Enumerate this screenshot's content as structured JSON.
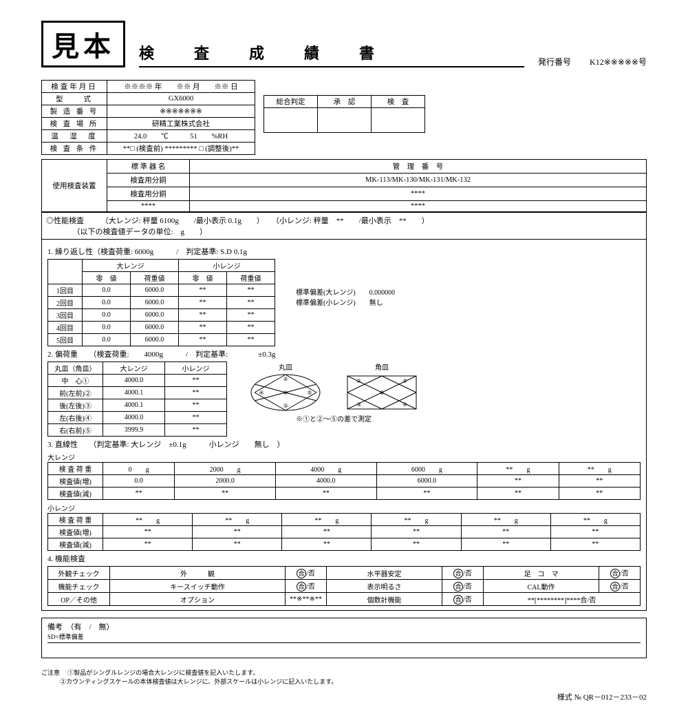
{
  "header": {
    "sample_stamp": "見本",
    "title": "検　査　成　績　書",
    "issue_label": "発行番号",
    "issue_no": "K12※※※※※号"
  },
  "info": {
    "rows": [
      [
        "検査年月日",
        "※※※※ 年　　※※ 月　　※※ 日"
      ],
      [
        "型　　式",
        "GX6000"
      ],
      [
        "製 造 番 号",
        "※※※※※※※"
      ],
      [
        "検 査 場 所",
        "研精工業株式会社"
      ],
      [
        "温　湿　度",
        "24.0　　℃　　　51　　%RH"
      ],
      [
        "検 査 条 件",
        "**□ (検査前) ********* □ (調整後)**"
      ]
    ]
  },
  "approval": {
    "cols": [
      "総合判定",
      "承　認",
      "検　査"
    ]
  },
  "equipment": {
    "label": "使用検査装置",
    "h1": "標 準 器 名",
    "h2": "管　理　番　号",
    "rows": [
      [
        "検査用分銅",
        "MK-113/MK-130/MK-131/MK-132"
      ],
      [
        "検査用分銅",
        "****"
      ],
      [
        "****",
        "****"
      ]
    ]
  },
  "perf": {
    "title": "◎性能検査",
    "spec": "（大レンジ: 秤量  6100g　　/最小表示  0.1g　　）　　（小レンジ: 秤量　**　　/最小表示　**　　）",
    "unit": "（以下の検査値データの単位:　g　　）"
  },
  "s1": {
    "title": "1. 繰り返し性（検査荷重: 6000g　　　/　判定基準: S.D 0.1g",
    "groups": [
      "大レンジ",
      "小レンジ"
    ],
    "cols": [
      "零　値",
      "荷重値",
      "零　値",
      "荷重値"
    ],
    "rows": [
      [
        "1回目",
        "0.0",
        "6000.0",
        "**",
        "**"
      ],
      [
        "2回目",
        "0.0",
        "6000.0",
        "**",
        "**"
      ],
      [
        "3回目",
        "0.0",
        "6000.0",
        "**",
        "**"
      ],
      [
        "4回目",
        "0.0",
        "6000.0",
        "**",
        "**"
      ],
      [
        "5回目",
        "0.0",
        "6000.0",
        "**",
        "**"
      ]
    ],
    "sd1_label": "標準偏差(大レンジ)",
    "sd1": "0.000000",
    "sd2_label": "標準偏差(小レンジ)",
    "sd2": "無し"
  },
  "s2": {
    "title": "2. 偏荷重　　（検査荷重:　　4000g　　　/　判定基準:　　　　±0.3g",
    "cols": [
      "丸皿（角皿）",
      "大レンジ",
      "小レンジ"
    ],
    "rows": [
      [
        "中　心①",
        "4000.0",
        "**"
      ],
      [
        "前(左前)②",
        "4000.1",
        "**"
      ],
      [
        "後(左後)③",
        "4000.1",
        "**"
      ],
      [
        "左(右後)④",
        "4000.0",
        "**"
      ],
      [
        "右(右前)⑤",
        "3999.9",
        "**"
      ]
    ],
    "dia1": "丸皿",
    "dia2": "角皿",
    "note": "※①と②～⑤の差で測定"
  },
  "s3": {
    "title": "3. 直線性　　（判定基準: 大レンジ　±0.1g　　　小レンジ　　無し　）",
    "range1": "大レンジ",
    "r1_loads": [
      "0",
      "2000",
      "4000",
      "6000",
      "**",
      "**"
    ],
    "r1_inc": [
      "0.0",
      "2000.0",
      "4000.0",
      "6000.0",
      "**",
      "**"
    ],
    "r1_dec": [
      "**",
      "**",
      "**",
      "**",
      "**",
      "**"
    ],
    "range2": "小レンジ",
    "r2_loads": [
      "**",
      "**",
      "**",
      "**",
      "**",
      "**"
    ],
    "r2_inc": [
      "**",
      "**",
      "**",
      "**",
      "**",
      "**"
    ],
    "r2_dec": [
      "**",
      "**",
      "**",
      "**",
      "**",
      "**"
    ],
    "lbl_load": "検 査 荷 重",
    "lbl_inc": "検査値(増)",
    "lbl_dec": "検査値(減)",
    "unit": "g"
  },
  "s4": {
    "title": "4. 機能検査",
    "rows": [
      [
        "外観チェック",
        "外　　　観",
        "合/否",
        "水平器安定",
        "合/否",
        "足　コ　マ",
        "合/否"
      ],
      [
        "機能チェック",
        "キースイッチ動作",
        "合/否",
        "表示明るさ",
        "合/否",
        "CAL動作",
        "合/否"
      ],
      [
        "OP／その他",
        "オプション",
        "**※**※**",
        "個数計機能",
        "合/否",
        "**[********]****合/否"
      ]
    ]
  },
  "remarks": {
    "line1": "備考　（有　/　無）",
    "line2": "SD=標準偏差"
  },
  "notes": {
    "lead": "ご注意",
    "n1": "①製品がシングルレンジの場合大レンジに検査値を記入いたします。",
    "n2": "②カウンティングスケールの本体検査値は大レンジに、外部スケールは小レンジに記入いたします。"
  },
  "form_no": "様式 № QR－012－233－02"
}
